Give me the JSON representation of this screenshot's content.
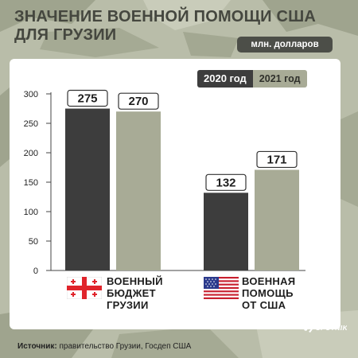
{
  "header": {
    "title_line1": "ЗНАЧЕНИЕ ВОЕННОЙ ПОМОЩИ США",
    "title_line2": "ДЛЯ ГРУЗИИ"
  },
  "units": "млн. долларов",
  "legend": {
    "year_2020": "2020 год",
    "year_2021": "2021 год"
  },
  "chart_data": {
    "type": "bar",
    "categories": [
      "ВОЕННЫЙ БЮДЖЕТ ГРУЗИИ",
      "ВОЕННАЯ ПОМОЩЬ ОТ США"
    ],
    "category_lines": [
      [
        "ВОЕННЫЙ",
        "БЮДЖЕТ",
        "ГРУЗИИ"
      ],
      [
        "ВОЕННАЯ",
        "ПОМОЩЬ",
        "ОТ США"
      ]
    ],
    "series": [
      {
        "name": "2020 год",
        "values": [
          275,
          132
        ],
        "color": "#3d3d3d"
      },
      {
        "name": "2021 год",
        "values": [
          270,
          171
        ],
        "color": "#a8ab96"
      }
    ],
    "ylim": [
      0,
      300
    ],
    "yticks": [
      "0",
      "50",
      "100",
      "150",
      "200",
      "250",
      "300"
    ],
    "data_labels": [
      "275",
      "270",
      "132",
      "171"
    ],
    "grid": false,
    "legend_position": "top-right"
  },
  "flags": {
    "category_1": "georgia-flag-icon",
    "category_2": "usa-flag-icon"
  },
  "colors": {
    "background": "#b6baa6",
    "dark": "#3d3d3d",
    "light": "#a8ab96",
    "panel": "#ffffff"
  },
  "source": {
    "key": "Источник:",
    "value": "правительство Грузии, Госдеп США"
  },
  "brand": "SPUTNIK"
}
